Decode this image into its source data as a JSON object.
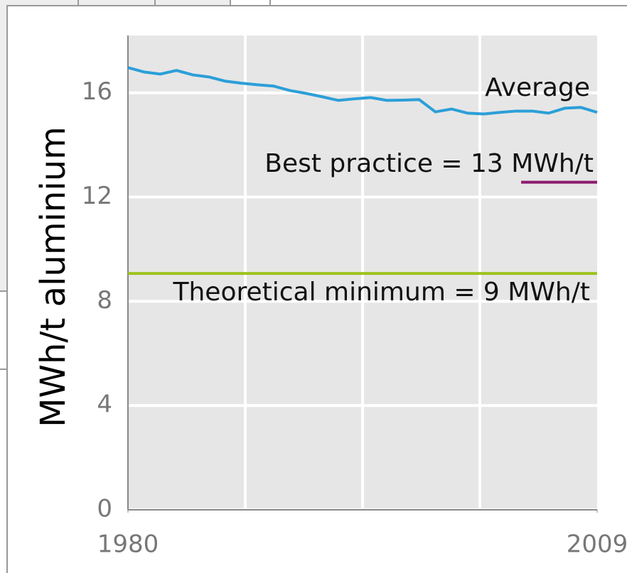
{
  "chart_data": {
    "type": "line",
    "y_label": "MWh/t aluminium",
    "xlim": [
      1980,
      2009
    ],
    "xticks": [
      1980,
      2009
    ],
    "xgrid": [
      1987.25,
      1994.5,
      2001.75
    ],
    "ylim": [
      0,
      18.2
    ],
    "yticks": [
      0,
      4,
      8,
      12,
      16
    ],
    "grid": true,
    "series": [
      {
        "name": "Average",
        "color": "#2b9fd8",
        "x": [
          1980,
          1981,
          1982,
          1983,
          1984,
          1985,
          1986,
          1987,
          1988,
          1989,
          1990,
          1991,
          1992,
          1993,
          1994,
          1995,
          1996,
          1997,
          1998,
          1999,
          2000,
          2001,
          2002,
          2003,
          2004,
          2005,
          2006,
          2007,
          2008,
          2009
        ],
        "values": [
          16.97,
          16.8,
          16.72,
          16.86,
          16.69,
          16.61,
          16.45,
          16.37,
          16.31,
          16.26,
          16.09,
          15.98,
          15.85,
          15.71,
          15.77,
          15.82,
          15.71,
          15.72,
          15.74,
          15.27,
          15.38,
          15.22,
          15.19,
          15.25,
          15.3,
          15.3,
          15.22,
          15.41,
          15.44,
          15.25
        ]
      },
      {
        "name": "Best practice = 13 MWh/t",
        "color": "#8c1a6e",
        "x": [
          2004.3,
          2009
        ],
        "values": [
          12.57,
          12.57
        ]
      },
      {
        "name": "Theoretical minimum = 9 MWh/t",
        "color": "#9cc31c",
        "x": [
          1980,
          2009
        ],
        "values": [
          9.07,
          9.07
        ]
      }
    ]
  }
}
